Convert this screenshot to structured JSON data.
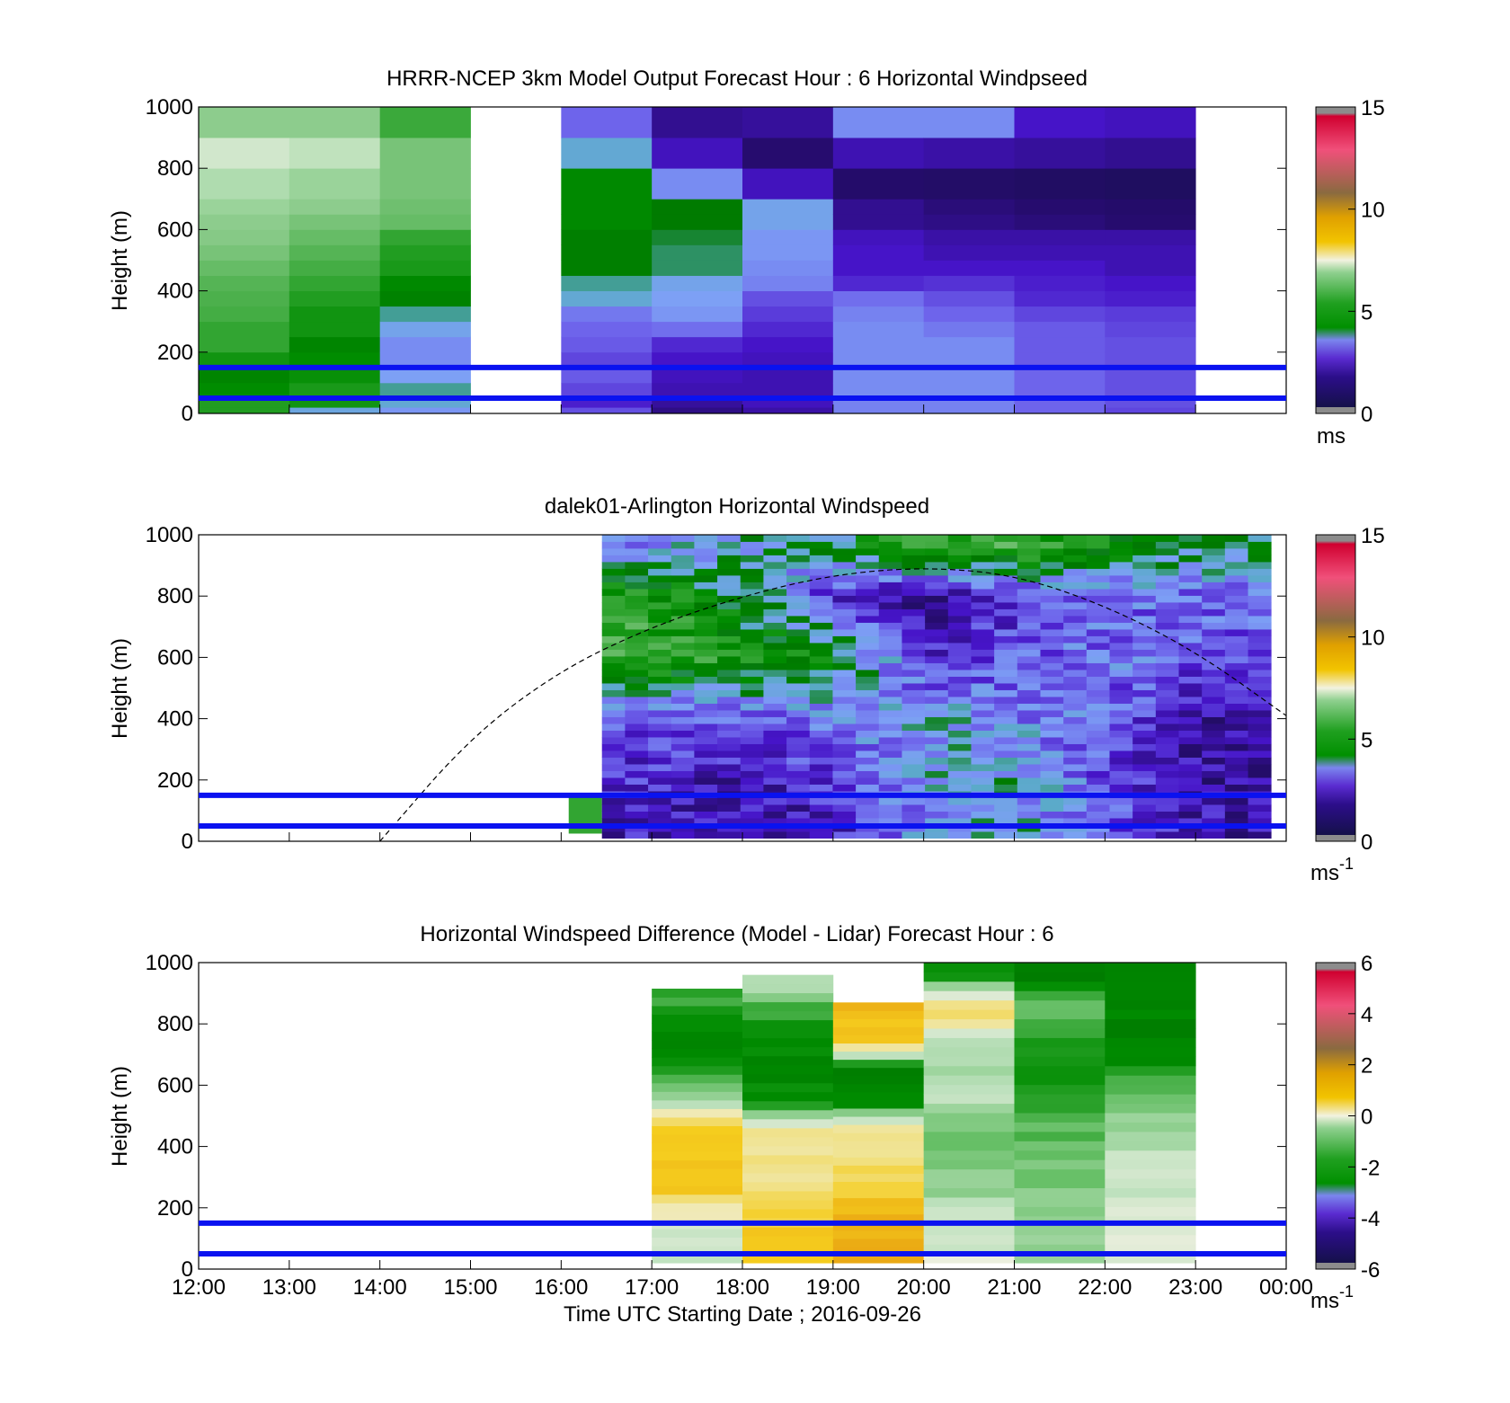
{
  "figure": {
    "xlabel": "Time UTC  Starting Date ; 2016-09-26",
    "xticks": [
      "12:00",
      "13:00",
      "14:00",
      "15:00",
      "16:00",
      "17:00",
      "18:00",
      "19:00",
      "20:00",
      "21:00",
      "22:00",
      "23:00",
      "00:00"
    ],
    "reference_lines_m": [
      50,
      150
    ],
    "reference_line_color": "#0a12f0"
  },
  "chart_data": [
    {
      "type": "heatmap",
      "title": "HRRR-NCEP 3km Model Output   Forecast Hour : 6 Horizontal Windpseed",
      "ylabel": "Height (m)",
      "yticks": [
        "0",
        "200",
        "400",
        "600",
        "800",
        "1000"
      ],
      "ylim": [
        0,
        1000
      ],
      "xlim": [
        "12:00",
        "00:00"
      ],
      "colorbar": {
        "ticks": [
          "0",
          "5",
          "10",
          "15"
        ],
        "unit": "ms",
        "range": [
          0,
          15
        ]
      },
      "hours": [
        "12:00",
        "13:00",
        "14:00",
        "16:00",
        "17:00",
        "18:00",
        "19:00",
        "20:00",
        "21:00",
        "22:00"
      ],
      "height_bin_tops_m": [
        20,
        50,
        100,
        150,
        200,
        250,
        300,
        350,
        400,
        450,
        500,
        550,
        600,
        650,
        700,
        800,
        900,
        1000
      ],
      "windspeed_ms": [
        [
          5.0,
          5.0,
          4.6,
          4.4,
          4.8,
          5.2,
          5.2,
          5.4,
          5.5,
          5.6,
          5.8,
          6.0,
          6.2,
          6.3,
          6.5,
          6.8,
          7.2,
          6.3
        ],
        [
          3.4,
          4.8,
          4.9,
          4.7,
          4.6,
          4.4,
          4.8,
          4.8,
          5.0,
          5.2,
          5.4,
          5.6,
          5.8,
          6.0,
          6.3,
          6.5,
          7.0,
          6.3
        ],
        [
          3.1,
          3.5,
          3.7,
          3.2,
          3.0,
          3.0,
          3.3,
          3.7,
          4.3,
          4.5,
          4.9,
          5.0,
          5.2,
          5.8,
          5.9,
          6.0,
          6.0,
          5.3
        ],
        [
          2.4,
          1.9,
          2.3,
          2.5,
          2.3,
          2.5,
          2.6,
          2.8,
          3.5,
          3.7,
          4.2,
          4.2,
          4.2,
          4.5,
          4.5,
          4.5,
          3.5,
          2.6
        ],
        [
          1.2,
          1.4,
          1.6,
          1.7,
          1.8,
          2.0,
          2.7,
          3.1,
          3.2,
          3.3,
          3.8,
          3.8,
          3.9,
          4.1,
          4.1,
          3.0,
          1.7,
          1.3
        ],
        [
          1.5,
          1.7,
          1.6,
          1.6,
          1.7,
          1.8,
          2.0,
          2.2,
          2.4,
          2.9,
          3.0,
          3.1,
          3.1,
          3.3,
          3.3,
          1.7,
          1.0,
          1.4
        ],
        [
          2.9,
          2.9,
          3.0,
          3.0,
          3.0,
          3.0,
          3.0,
          2.9,
          2.7,
          2.0,
          1.8,
          1.8,
          1.7,
          1.3,
          1.3,
          0.9,
          1.6,
          3.0
        ],
        [
          2.9,
          2.9,
          3.0,
          3.0,
          3.0,
          3.0,
          2.8,
          2.6,
          2.4,
          2.1,
          1.8,
          1.6,
          1.5,
          1.2,
          1.1,
          0.8,
          1.5,
          3.0
        ],
        [
          2.6,
          2.6,
          2.6,
          2.6,
          2.5,
          2.5,
          2.5,
          2.3,
          2.0,
          1.9,
          1.8,
          1.6,
          1.5,
          1.1,
          1.0,
          0.7,
          1.4,
          1.8
        ],
        [
          2.3,
          2.4,
          2.4,
          2.4,
          2.4,
          2.4,
          2.3,
          2.2,
          1.9,
          1.8,
          1.6,
          1.6,
          1.5,
          1.0,
          0.9,
          0.6,
          1.3,
          1.7
        ]
      ]
    },
    {
      "type": "heatmap",
      "title": "dalek01-Arlington  Horizontal Windspeed",
      "ylabel": "Height (m)",
      "yticks": [
        "0",
        "200",
        "400",
        "600",
        "800",
        "1000"
      ],
      "ylim": [
        0,
        1000
      ],
      "xlim": [
        "12:00",
        "00:00"
      ],
      "colorbar": {
        "ticks": [
          "0",
          "5",
          "10",
          "15"
        ],
        "unit": "ms",
        "unit_superscript": "-1",
        "range": [
          0,
          15
        ]
      },
      "data_span": [
        "16:27",
        "23:50"
      ],
      "early_patch": {
        "time": [
          "16:05",
          "16:27"
        ],
        "height_m": [
          25,
          150
        ],
        "windspeed_ms": 5.2
      },
      "boundary_layer_curve": {
        "style": "dashed",
        "points": [
          [
            "14:00",
            0
          ],
          [
            "15:00",
            340
          ],
          [
            "16:00",
            560
          ],
          [
            "17:00",
            700
          ],
          [
            "18:00",
            800
          ],
          [
            "19:00",
            870
          ],
          [
            "20:00",
            895
          ],
          [
            "21:00",
            870
          ],
          [
            "22:00",
            770
          ],
          [
            "23:00",
            620
          ],
          [
            "00:00",
            410
          ]
        ]
      },
      "profile_summary": [
        {
          "time": "17:00",
          "windspeed_ms_by_height": {
            "50": 1.8,
            "200": 2.0,
            "400": 2.3,
            "600": 5.2,
            "800": 5.0,
            "950": 3.0
          }
        },
        {
          "time": "18:00",
          "windspeed_ms_by_height": {
            "50": 1.5,
            "200": 1.6,
            "400": 2.4,
            "600": 5.0,
            "800": 3.8,
            "950": 3.5
          }
        },
        {
          "time": "19:00",
          "windspeed_ms_by_height": {
            "50": 1.8,
            "200": 2.2,
            "400": 2.8,
            "600": 4.5,
            "800": 2.0,
            "950": 3.8
          }
        },
        {
          "time": "20:00",
          "windspeed_ms_by_height": {
            "50": 3.0,
            "200": 3.2,
            "400": 3.3,
            "600": 2.0,
            "800": 1.2,
            "950": 5.0
          }
        },
        {
          "time": "21:00",
          "windspeed_ms_by_height": {
            "50": 3.4,
            "200": 3.4,
            "400": 3.0,
            "600": 2.4,
            "800": 2.1,
            "950": 5.2
          }
        },
        {
          "time": "22:00",
          "windspeed_ms_by_height": {
            "50": 2.6,
            "200": 2.4,
            "400": 2.6,
            "600": 2.8,
            "800": 2.6,
            "950": 4.5
          }
        },
        {
          "time": "23:00",
          "windspeed_ms_by_height": {
            "50": 1.6,
            "200": 1.4,
            "400": 1.5,
            "600": 2.4,
            "800": 2.6,
            "950": 3.8
          }
        }
      ]
    },
    {
      "type": "heatmap",
      "title": "Horizontal Windspeed Difference (Model - Lidar) Forecast Hour : 6",
      "ylabel": "Height (m)",
      "yticks": [
        "0",
        "200",
        "400",
        "600",
        "800",
        "1000"
      ],
      "ylim": [
        0,
        1000
      ],
      "xlim": [
        "12:00",
        "00:00"
      ],
      "colorbar": {
        "ticks": [
          "-6",
          "-4",
          "-2",
          "0",
          "2",
          "4",
          "6"
        ],
        "unit": "ms",
        "unit_superscript": "-1",
        "range": [
          -6,
          6
        ]
      },
      "hours": [
        "17:00",
        "18:00",
        "19:00",
        "20:00",
        "21:00",
        "22:00"
      ],
      "column_tops_m": [
        915,
        960,
        870,
        1000,
        1000,
        1000
      ],
      "difference_ms_by_height": [
        {
          "time": "17:00",
          "profile": [
            [
              50,
              -0.5
            ],
            [
              150,
              -0.3
            ],
            [
              250,
              1.2
            ],
            [
              350,
              1.4
            ],
            [
              450,
              1.5
            ],
            [
              550,
              -0.8
            ],
            [
              650,
              -2.0
            ],
            [
              750,
              -2.6
            ],
            [
              850,
              -2.0
            ]
          ]
        },
        {
          "time": "18:00",
          "profile": [
            [
              50,
              1.3
            ],
            [
              150,
              1.2
            ],
            [
              250,
              0.6
            ],
            [
              350,
              0.4
            ],
            [
              450,
              0.6
            ],
            [
              550,
              -2.4
            ],
            [
              650,
              -2.6
            ],
            [
              750,
              -2.3
            ],
            [
              850,
              -1.9
            ],
            [
              930,
              -0.6
            ]
          ]
        },
        {
          "time": "19:00",
          "profile": [
            [
              50,
              2.0
            ],
            [
              150,
              1.8
            ],
            [
              250,
              1.2
            ],
            [
              350,
              0.8
            ],
            [
              450,
              0.5
            ],
            [
              550,
              -2.6
            ],
            [
              650,
              -2.8
            ],
            [
              750,
              1.4
            ],
            [
              840,
              1.6
            ]
          ]
        },
        {
          "time": "20:00",
          "profile": [
            [
              50,
              -0.3
            ],
            [
              150,
              -0.5
            ],
            [
              250,
              -1.0
            ],
            [
              350,
              -1.3
            ],
            [
              450,
              -1.3
            ],
            [
              550,
              -0.8
            ],
            [
              650,
              -0.8
            ],
            [
              750,
              -0.5
            ],
            [
              850,
              1.2
            ],
            [
              950,
              -2.2
            ]
          ]
        },
        {
          "time": "21:00",
          "profile": [
            [
              50,
              -1.2
            ],
            [
              150,
              -1.2
            ],
            [
              250,
              -1.3
            ],
            [
              350,
              -1.4
            ],
            [
              450,
              -1.6
            ],
            [
              550,
              -2.0
            ],
            [
              650,
              -2.2
            ],
            [
              750,
              -2.4
            ],
            [
              850,
              -1.0
            ],
            [
              950,
              -3.0
            ]
          ]
        },
        {
          "time": "22:00",
          "profile": [
            [
              50,
              -0.2
            ],
            [
              150,
              -0.4
            ],
            [
              250,
              -0.5
            ],
            [
              350,
              -0.6
            ],
            [
              450,
              -0.8
            ],
            [
              550,
              -1.4
            ],
            [
              650,
              -2.2
            ],
            [
              750,
              -2.6
            ],
            [
              850,
              -2.7
            ],
            [
              950,
              -2.8
            ]
          ]
        }
      ]
    }
  ]
}
